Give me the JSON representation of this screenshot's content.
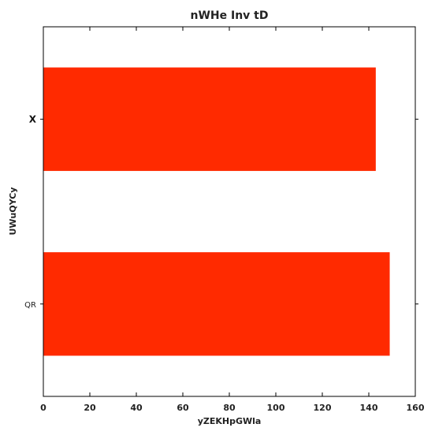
{
  "chart_data": {
    "type": "bar",
    "orientation": "horizontal",
    "title": "nWHe  Inv tD",
    "xlabel": "yZEKHpGWla",
    "ylabel": "UWuQYCy",
    "categories": [
      "QR",
      "X"
    ],
    "category_styles": [
      "normal",
      "bold"
    ],
    "values": [
      149,
      143
    ],
    "xlim": [
      0,
      160
    ],
    "xticks": [
      0,
      20,
      40,
      60,
      80,
      100,
      120,
      140,
      160
    ],
    "bar_color": "#ff2a00",
    "grid": false,
    "legend": "none"
  }
}
